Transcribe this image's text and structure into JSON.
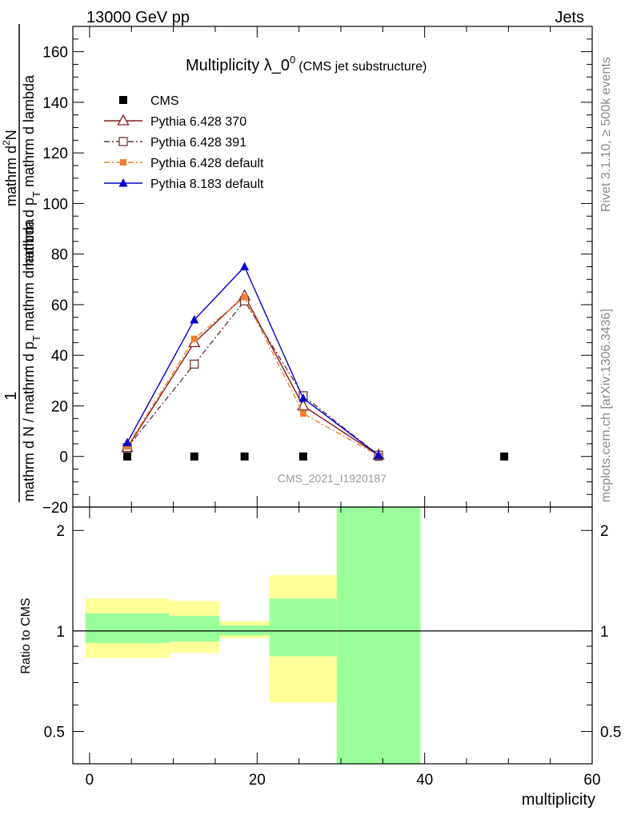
{
  "header": {
    "left": "13000 GeV pp",
    "right": "Jets",
    "side_top": "Rivet 3.1.10, ≥ 500k events",
    "side_bottom": "mcplots.cern.ch [arXiv:1306.3436]",
    "watermark": "CMS_2021_I1920187"
  },
  "chart_data": {
    "type": "line",
    "title_main": "Multiplicity λ_0",
    "title_sup": "0",
    "title_sub": "(CMS jet substructure)",
    "xlabel": "multiplicity",
    "ylabel_num": "1",
    "ylabel_den": "mathrm d N / mathrm d p",
    "ylabel_den_sub": "T",
    "ylabel_den2": " mathrm d lambda",
    "ylabel_top_num": "mathrm d",
    "ylabel_top_sup": "2",
    "ylabel_top_num2": "N",
    "ylabel_top_den": "mathrm d p",
    "ylabel_top_den_sub": "T",
    "ylabel_top_den2": " mathrm d lambda",
    "ratio_ylabel": "Ratio to CMS",
    "xlim": [
      -2,
      60
    ],
    "ylim": [
      -20,
      170
    ],
    "ratio_ylim": [
      0.4,
      2.35
    ],
    "x_ticks": [
      "0",
      "20",
      "40",
      "60"
    ],
    "y_ticks": [
      "−20",
      "0",
      "20",
      "40",
      "60",
      "80",
      "100",
      "120",
      "140",
      "160"
    ],
    "ratio_ticks": [
      "0.5",
      "1",
      "2"
    ],
    "ratio_tick_values": [
      0.5,
      1,
      2
    ],
    "x_tick_values": [
      0,
      20,
      40,
      60
    ],
    "y_tick_values": [
      -20,
      0,
      20,
      40,
      60,
      80,
      100,
      120,
      140,
      160
    ],
    "series": [
      {
        "name": "CMS",
        "color": "#000000",
        "marker": "square-filled",
        "dash": "none",
        "x": [
          4.5,
          12.5,
          18.5,
          25.5,
          34.5,
          49.5
        ],
        "y": [
          0,
          0,
          0,
          0,
          0,
          0
        ]
      },
      {
        "name": "Pythia 6.428 370",
        "color": "#8b1a1a",
        "marker": "triangle-open",
        "dash": "solid",
        "x": [
          4.5,
          12.5,
          18.5,
          25.5,
          34.5
        ],
        "y": [
          3.5,
          45,
          63.5,
          20,
          0.5
        ]
      },
      {
        "name": "Pythia 6.428 391",
        "color": "#6b3a3a",
        "marker": "square-open",
        "dash": "dashdot",
        "x": [
          4.5,
          12.5,
          18.5,
          25.5,
          34.5
        ],
        "y": [
          3.5,
          36.5,
          61.5,
          24,
          0.5
        ]
      },
      {
        "name": "Pythia 6.428 default",
        "color": "#f07f30",
        "marker": "square-filled-small",
        "dash": "dashdot",
        "x": [
          4.5,
          12.5,
          18.5,
          25.5,
          34.5
        ],
        "y": [
          4,
          46.5,
          63,
          17,
          0.3
        ]
      },
      {
        "name": "Pythia 8.183 default",
        "color": "#0000cc",
        "marker": "triangle-filled",
        "dash": "solid",
        "x": [
          4.5,
          12.5,
          18.5,
          25.5,
          34.5
        ],
        "y": [
          5.5,
          54,
          75,
          23,
          0.5
        ]
      }
    ],
    "ratio_bands": [
      {
        "x0": -0.5,
        "x1": 9.5,
        "yellow": [
          0.83,
          1.25
        ],
        "green": [
          0.92,
          1.13
        ]
      },
      {
        "x0": 9.5,
        "x1": 15.5,
        "yellow": [
          0.86,
          1.23
        ],
        "green": [
          0.93,
          1.11
        ]
      },
      {
        "x0": 15.5,
        "x1": 21.5,
        "yellow": [
          0.95,
          1.07
        ],
        "green": [
          0.97,
          1.04
        ]
      },
      {
        "x0": 21.5,
        "x1": 29.5,
        "yellow": [
          0.61,
          1.47
        ],
        "green": [
          0.84,
          1.25
        ]
      },
      {
        "x0": 29.5,
        "x1": 39.5,
        "yellow": [
          0.3,
          2.6
        ],
        "green": [
          0.3,
          2.6
        ]
      }
    ],
    "colors": {
      "green_band": "#99ff99",
      "yellow_band": "#ffff99",
      "watermark": "#999999"
    }
  }
}
